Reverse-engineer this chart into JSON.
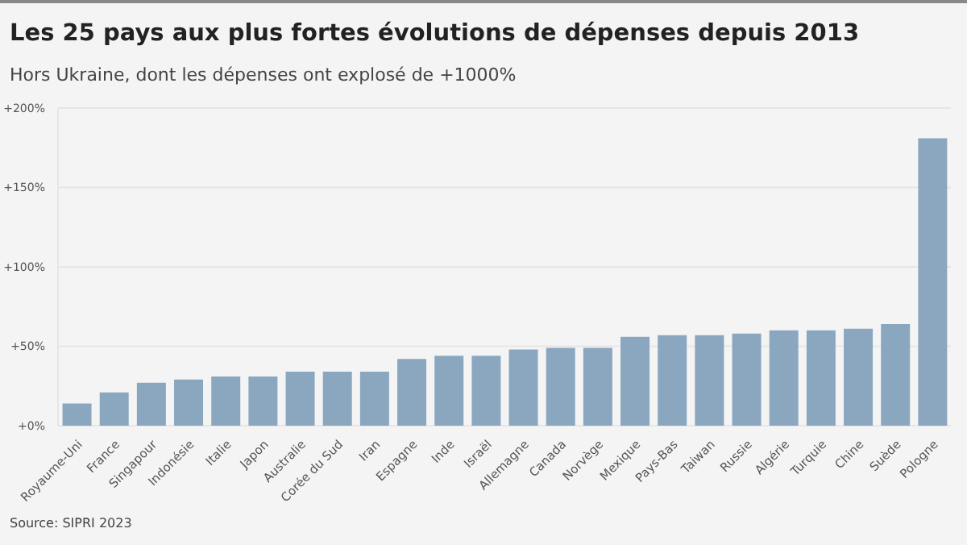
{
  "chart_data": {
    "type": "bar",
    "title": "Les 25 pays aux plus fortes évolutions de dépenses depuis 2013",
    "subtitle": "Hors Ukraine, dont les dépenses ont explosé de +1000%",
    "categories": [
      "Royaume-Uni",
      "France",
      "Singapour",
      "Indonésie",
      "Italie",
      "Japon",
      "Australie",
      "Corée du Sud",
      "Iran",
      "Espagne",
      "Inde",
      "Israël",
      "Allemagne",
      "Canada",
      "Norvège",
      "Mexique",
      "Pays-Bas",
      "Taiwan",
      "Russie",
      "Algérie",
      "Turquie",
      "Chine",
      "Suède",
      "Pologne"
    ],
    "values": [
      14,
      21,
      27,
      29,
      31,
      31,
      34,
      34,
      34,
      42,
      44,
      44,
      48,
      49,
      49,
      56,
      57,
      57,
      58,
      60,
      60,
      61,
      64,
      181
    ],
    "color": "#8ba7c0",
    "ylim": [
      0,
      200
    ],
    "yticks": [
      {
        "value": 0,
        "label": "+0%"
      },
      {
        "value": 50,
        "label": "+50%"
      },
      {
        "value": 100,
        "label": "+100%"
      },
      {
        "value": 150,
        "label": "+150%"
      },
      {
        "value": 200,
        "label": "+200%"
      }
    ],
    "grid": "y",
    "legend": false,
    "annotations": [
      "Source: SIPRI 2023"
    ]
  }
}
